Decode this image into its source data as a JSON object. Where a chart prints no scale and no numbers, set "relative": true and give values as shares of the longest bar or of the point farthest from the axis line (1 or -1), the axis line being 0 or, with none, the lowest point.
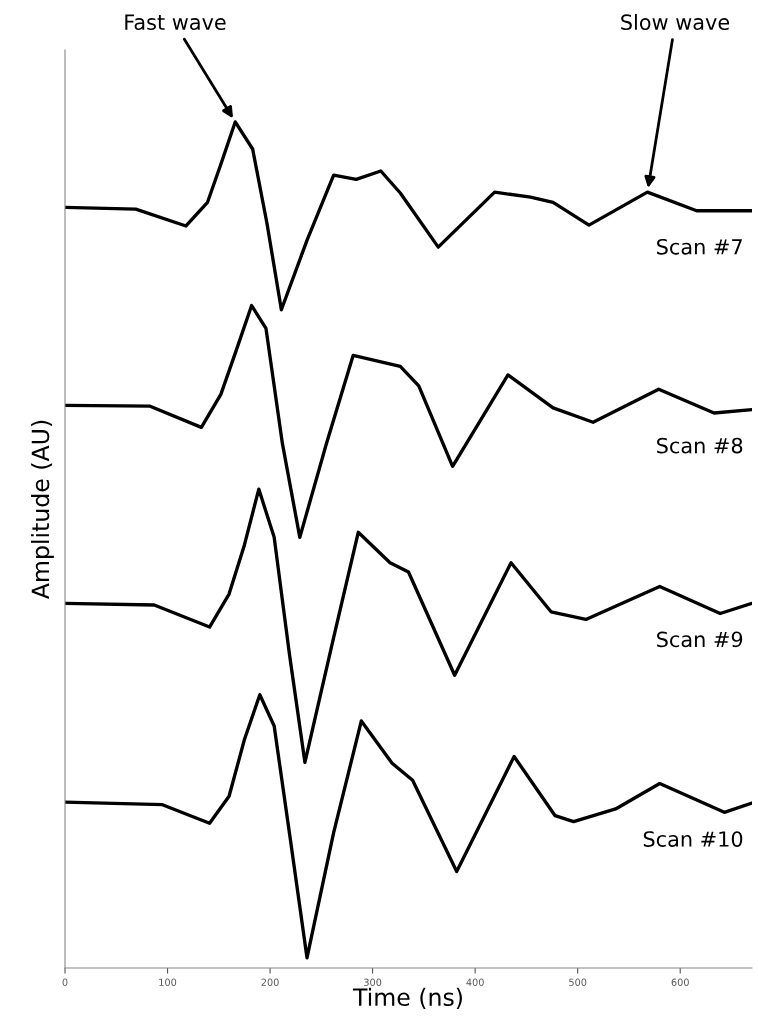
{
  "chart_data": {
    "type": "line",
    "relative": true,
    "xlabel": "Time (ns)",
    "ylabel": "Amplitude (AU)",
    "xlim": [
      0,
      670
    ],
    "xticks": [
      0,
      100,
      200,
      300,
      400,
      500,
      600
    ],
    "tick_labels": "x",
    "grid": false,
    "legend": false,
    "marker": "none",
    "line_style": "solid",
    "annotations": [
      {
        "text": "Fast wave",
        "x": 166,
        "y": 1.0
      },
      {
        "text": "Slow wave",
        "x": 568,
        "y": 0.917
      }
    ],
    "series": [
      {
        "name": "Scan #7",
        "color": "#000000",
        "x": [
          0,
          69,
          118,
          139,
          152,
          166,
          183,
          197,
          211,
          236,
          262,
          284,
          308,
          327,
          364,
          419,
          454,
          476,
          511,
          568,
          616,
          670
        ],
        "values": [
          0.899,
          0.897,
          0.877,
          0.905,
          0.95,
          1.0,
          0.968,
          0.88,
          0.778,
          0.86,
          0.937,
          0.932,
          0.942,
          0.916,
          0.852,
          0.917,
          0.911,
          0.905,
          0.878,
          0.917,
          0.895,
          0.895
        ]
      },
      {
        "name": "Scan #8",
        "color": "#000000",
        "x": [
          0,
          83,
          133,
          152,
          167,
          182,
          196,
          212,
          229,
          255,
          281,
          327,
          345,
          378,
          432,
          476,
          515,
          579,
          633,
          670
        ],
        "values": [
          0.665,
          0.664,
          0.639,
          0.678,
          0.73,
          0.783,
          0.756,
          0.62,
          0.509,
          0.62,
          0.724,
          0.711,
          0.688,
          0.593,
          0.701,
          0.662,
          0.645,
          0.684,
          0.656,
          0.66
        ]
      },
      {
        "name": "Scan #9",
        "color": "#000000",
        "x": [
          0,
          87,
          141,
          160,
          175,
          189,
          204,
          219,
          234,
          260,
          286,
          317,
          335,
          380,
          435,
          474,
          508,
          580,
          639,
          670
        ],
        "values": [
          0.431,
          0.429,
          0.403,
          0.442,
          0.5,
          0.566,
          0.509,
          0.37,
          0.243,
          0.38,
          0.515,
          0.479,
          0.468,
          0.346,
          0.479,
          0.421,
          0.412,
          0.451,
          0.419,
          0.431
        ]
      },
      {
        "name": "Scan #10",
        "color": "#000000",
        "x": [
          0,
          95,
          141,
          160,
          175,
          190,
          204,
          220,
          236,
          262,
          289,
          319,
          339,
          382,
          438,
          478,
          496,
          537,
          580,
          643,
          670
        ],
        "values": [
          0.196,
          0.193,
          0.171,
          0.203,
          0.27,
          0.323,
          0.286,
          0.15,
          0.012,
          0.16,
          0.292,
          0.242,
          0.222,
          0.114,
          0.25,
          0.18,
          0.173,
          0.188,
          0.218,
          0.184,
          0.195
        ]
      }
    ]
  }
}
